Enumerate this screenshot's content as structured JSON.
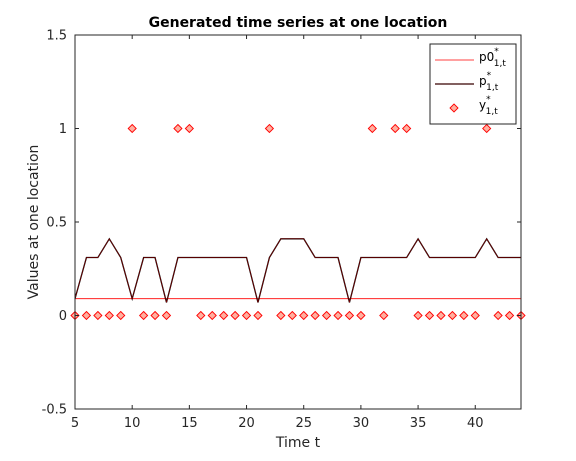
{
  "chart_data": {
    "type": "line",
    "title": "Generated time series at one location",
    "xlabel": "Time t",
    "ylabel": "Values at one location",
    "xlim": [
      5,
      44
    ],
    "ylim": [
      -0.5,
      1.5
    ],
    "x_ticks": [
      "5",
      "10",
      "15",
      "20",
      "25",
      "30",
      "35",
      "40"
    ],
    "y_ticks": [
      "-0.5",
      "0",
      "0.5",
      "1",
      "1.5"
    ],
    "grid": false,
    "legend_placement": "top-right",
    "colors": {
      "p0": "#ff0000",
      "p": "#000000",
      "p_overlay": "#8b0000",
      "y_fill": "#ffb0a0",
      "y_edge": "#ff0000"
    },
    "x": [
      5,
      6,
      7,
      8,
      9,
      10,
      11,
      12,
      13,
      14,
      15,
      16,
      17,
      18,
      19,
      20,
      21,
      22,
      23,
      24,
      25,
      26,
      27,
      28,
      29,
      30,
      31,
      32,
      33,
      34,
      35,
      36,
      37,
      38,
      39,
      40,
      41,
      42,
      43,
      44
    ],
    "series": [
      {
        "key": "p0",
        "legend_main": "p0",
        "legend_sub": "1,t",
        "style": "line",
        "values": [
          0.09,
          0.09,
          0.09,
          0.09,
          0.09,
          0.09,
          0.09,
          0.09,
          0.09,
          0.09,
          0.09,
          0.09,
          0.09,
          0.09,
          0.09,
          0.09,
          0.09,
          0.09,
          0.09,
          0.09,
          0.09,
          0.09,
          0.09,
          0.09,
          0.09,
          0.09,
          0.09,
          0.09,
          0.09,
          0.09,
          0.09,
          0.09,
          0.09,
          0.09,
          0.09,
          0.09,
          0.09,
          0.09,
          0.09,
          0.09
        ]
      },
      {
        "key": "p",
        "legend_main": "p",
        "legend_sub": "1,t",
        "style": "line",
        "values": [
          0.09,
          0.31,
          0.31,
          0.41,
          0.31,
          0.09,
          0.31,
          0.31,
          0.07,
          0.31,
          0.31,
          0.31,
          0.31,
          0.31,
          0.31,
          0.31,
          0.07,
          0.31,
          0.41,
          0.41,
          0.41,
          0.31,
          0.31,
          0.31,
          0.07,
          0.31,
          0.31,
          0.31,
          0.31,
          0.31,
          0.41,
          0.31,
          0.31,
          0.31,
          0.31,
          0.31,
          0.41,
          0.31,
          0.31,
          0.31
        ]
      },
      {
        "key": "y",
        "legend_main": "y",
        "legend_sub": "1,t",
        "style": "marker",
        "values": [
          0,
          0,
          0,
          0,
          0,
          1,
          0,
          0,
          0,
          1,
          1,
          0,
          0,
          0,
          0,
          0,
          0,
          1,
          0,
          0,
          0,
          0,
          0,
          0,
          0,
          0,
          1,
          0,
          1,
          1,
          0,
          0,
          0,
          0,
          0,
          0,
          1,
          0,
          0,
          0
        ]
      }
    ]
  }
}
